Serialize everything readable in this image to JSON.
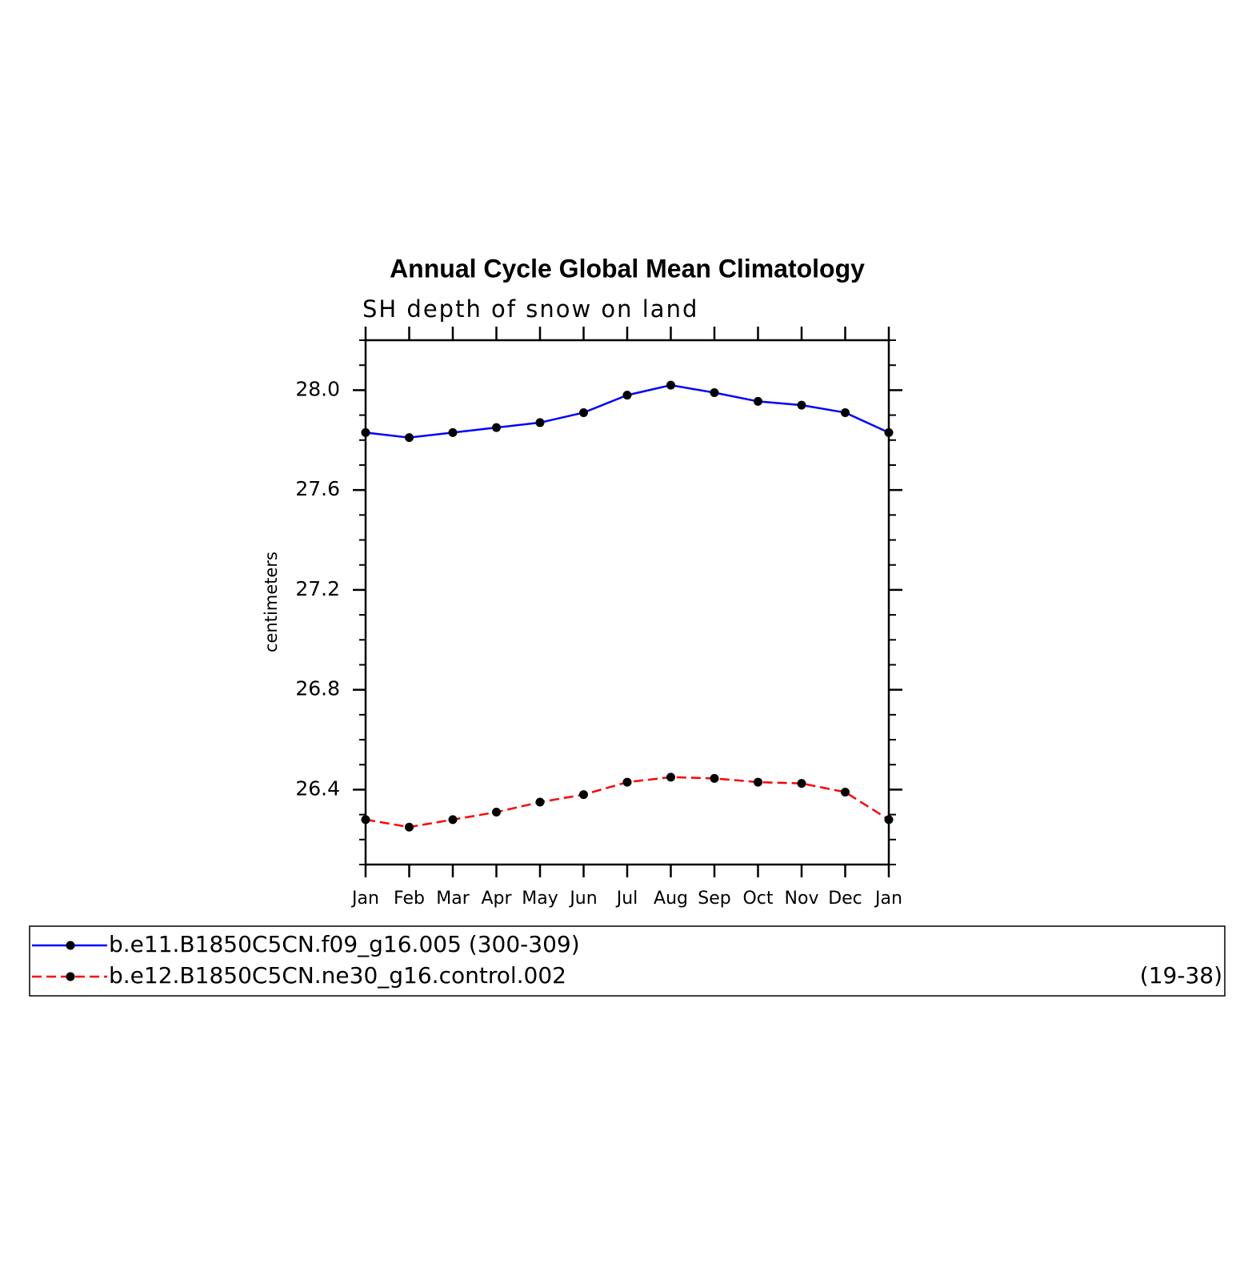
{
  "chart_data": {
    "type": "line",
    "title": "Annual Cycle Global Mean Climatology",
    "subtitle": "SH depth of snow on land",
    "y_label": "centimeters",
    "categories": [
      "Jan",
      "Feb",
      "Mar",
      "Apr",
      "May",
      "Jun",
      "Jul",
      "Aug",
      "Sep",
      "Oct",
      "Nov",
      "Dec",
      "Jan"
    ],
    "ylim": [
      26.1,
      28.2
    ],
    "yticks": [
      {
        "value": 26.4,
        "label": "26.4"
      },
      {
        "value": 26.8,
        "label": "26.8"
      },
      {
        "value": 27.2,
        "label": "27.2"
      },
      {
        "value": 27.6,
        "label": "27.6"
      },
      {
        "value": 28.0,
        "label": "28.0"
      }
    ],
    "yminorticks": [
      26.1,
      26.2,
      26.3,
      26.5,
      26.6,
      26.7,
      26.9,
      27.0,
      27.1,
      27.3,
      27.4,
      27.5,
      27.7,
      27.8,
      27.9,
      28.1,
      28.2
    ],
    "grid": false,
    "legend": "bottom",
    "series": [
      {
        "name": "b.e11.B1850C5CN.f09_g16.005 (300-309)",
        "color": "#0000ff",
        "dash": false,
        "values": [
          27.83,
          27.81,
          27.83,
          27.85,
          27.87,
          27.91,
          27.98,
          28.02,
          27.99,
          27.955,
          27.94,
          27.91,
          27.83
        ]
      },
      {
        "name": "b.e12.B1850C5CN.ne30_g16.control.002",
        "period": "(19-38)",
        "color": "#ff0000",
        "dash": true,
        "values": [
          26.28,
          26.25,
          26.28,
          26.31,
          26.35,
          26.38,
          26.43,
          26.45,
          26.445,
          26.43,
          26.425,
          26.39,
          26.28
        ]
      }
    ]
  }
}
